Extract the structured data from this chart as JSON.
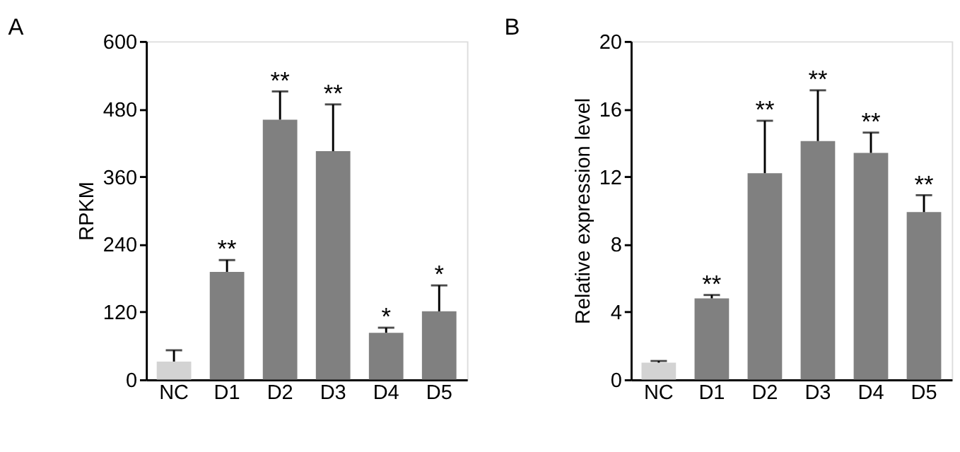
{
  "chart_data": [
    {
      "type": "bar",
      "title": "A",
      "ylabel": "RPKM",
      "categories": [
        "NC",
        "D1",
        "D2",
        "D3",
        "D4",
        "D5"
      ],
      "values": [
        32,
        191,
        461,
        405,
        83,
        121
      ],
      "colors": [
        "#d3d3d3",
        "#808080",
        "#808080",
        "#808080",
        "#808080",
        "#808080"
      ],
      "errors": [
        [
          32,
          52
        ],
        [
          191,
          212
        ],
        [
          461,
          511
        ],
        [
          405,
          488
        ],
        [
          83,
          92
        ],
        [
          121,
          167
        ]
      ],
      "ylim": [
        0,
        600
      ],
      "yticks": [
        0,
        120,
        240,
        360,
        480,
        600
      ],
      "grid": false,
      "annotations": [
        {
          "text": "**",
          "x": "D1",
          "y": 212
        },
        {
          "text": "**",
          "x": "D2",
          "y": 511
        },
        {
          "text": "**",
          "x": "D3",
          "y": 488
        },
        {
          "text": "*",
          "x": "D4",
          "y": 92
        },
        {
          "text": "*",
          "x": "D5",
          "y": 167
        }
      ]
    },
    {
      "type": "bar",
      "title": "B",
      "ylabel": "Relative expression level",
      "categories": [
        "NC",
        "D1",
        "D2",
        "D3",
        "D4",
        "D5"
      ],
      "values": [
        1.0,
        4.8,
        12.2,
        14.1,
        13.4,
        9.9
      ],
      "colors": [
        "#d3d3d3",
        "#808080",
        "#808080",
        "#808080",
        "#808080",
        "#808080"
      ],
      "errors": [
        [
          1.0,
          1.1
        ],
        [
          4.8,
          5.0
        ],
        [
          12.2,
          15.3
        ],
        [
          14.1,
          17.1
        ],
        [
          13.4,
          14.6
        ],
        [
          9.9,
          10.9
        ]
      ],
      "ylim": [
        0,
        20
      ],
      "yticks": [
        0,
        4,
        8,
        12,
        16,
        20
      ],
      "grid": false,
      "annotations": [
        {
          "text": "**",
          "x": "D1",
          "y": 5.0
        },
        {
          "text": "**",
          "x": "D2",
          "y": 15.3
        },
        {
          "text": "**",
          "x": "D3",
          "y": 17.1
        },
        {
          "text": "**",
          "x": "D4",
          "y": 14.6
        },
        {
          "text": "**",
          "x": "D5",
          "y": 10.9
        }
      ]
    }
  ]
}
